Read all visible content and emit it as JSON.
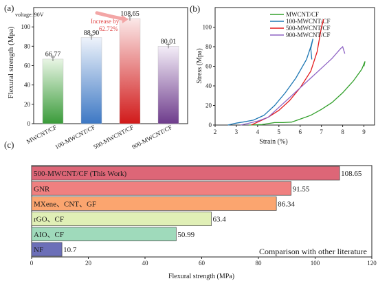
{
  "colors": {
    "axis": "#222222",
    "text": "#1a1a1a"
  },
  "chart_data": [
    {
      "panel_label": "(a)",
      "type": "bar",
      "ylabel": "Flexural strength (Mpa)",
      "ylim": [
        0,
        120
      ],
      "yticks": [
        0,
        20,
        40,
        60,
        80,
        100
      ],
      "categories": [
        "MWCNT/CF",
        "100-MWCNT/CF",
        "500-MWCNT/CF",
        "900-MWCNT/CF"
      ],
      "values": [
        66.77,
        88.9,
        108.65,
        80.01
      ],
      "value_labels": [
        "66.77",
        "88.90",
        "108.65",
        "80.01"
      ],
      "bar_colors": [
        [
          "#3a9b3a",
          "#e8f5e4"
        ],
        [
          "#3d78c4",
          "#eef3fb"
        ],
        [
          "#d11a1a",
          "#fbe8e8"
        ],
        [
          "#6e3c8c",
          "#f4eef8"
        ]
      ],
      "annotations": {
        "voltage": "voltage: 90V",
        "increase_label": "Increase by",
        "increase_value": "62.72%",
        "arrow_color": "#f3a6a6",
        "increase_text_color": "#e04848"
      }
    },
    {
      "panel_label": "(b)",
      "type": "line",
      "xlabel": "Strain (%)",
      "ylabel": "Stress (Mpa)",
      "xlim": [
        2,
        9.5
      ],
      "ylim": [
        0,
        120
      ],
      "xticks": [
        2,
        3,
        4,
        5,
        6,
        7,
        8,
        9
      ],
      "yticks": [
        0,
        20,
        40,
        60,
        80,
        100
      ],
      "legend_position": "top-right",
      "series": [
        {
          "name": "MWCNT/CF",
          "color": "#33a02c",
          "points": [
            [
              3.6,
              0
            ],
            [
              4.2,
              0.5
            ],
            [
              4.8,
              2.5
            ],
            [
              5.2,
              2.5
            ],
            [
              5.6,
              3
            ],
            [
              6.0,
              6
            ],
            [
              6.5,
              10
            ],
            [
              7.0,
              16
            ],
            [
              7.5,
              23
            ],
            [
              8.0,
              33
            ],
            [
              8.5,
              45
            ],
            [
              8.9,
              57
            ],
            [
              9.05,
              65
            ],
            [
              9.0,
              60
            ]
          ]
        },
        {
          "name": "100-MWCNT/CF",
          "color": "#1f78b4",
          "points": [
            [
              2.6,
              0
            ],
            [
              3.0,
              2
            ],
            [
              3.3,
              3
            ],
            [
              3.8,
              5
            ],
            [
              4.3,
              10
            ],
            [
              4.8,
              20
            ],
            [
              5.3,
              33
            ],
            [
              5.8,
              48
            ],
            [
              6.3,
              67
            ],
            [
              6.5,
              80
            ],
            [
              6.6,
              88
            ],
            [
              6.5,
              78
            ],
            [
              6.55,
              67
            ]
          ]
        },
        {
          "name": "500-MWCNT/CF",
          "color": "#e31a1c",
          "points": [
            [
              3.7,
              0
            ],
            [
              4.0,
              3
            ],
            [
              4.5,
              8
            ],
            [
              5.0,
              15
            ],
            [
              5.5,
              25
            ],
            [
              6.0,
              38
            ],
            [
              6.5,
              55
            ],
            [
              6.8,
              75
            ],
            [
              7.0,
              100
            ],
            [
              7.1,
              108
            ],
            [
              7.05,
              103
            ]
          ]
        },
        {
          "name": "900-MWCNT/CF",
          "color": "#8e63c4",
          "points": [
            [
              3.2,
              0
            ],
            [
              3.6,
              2
            ],
            [
              4.0,
              4
            ],
            [
              4.5,
              8
            ],
            [
              5.0,
              18
            ],
            [
              5.5,
              28
            ],
            [
              6.0,
              38
            ],
            [
              6.5,
              48
            ],
            [
              7.0,
              58
            ],
            [
              7.5,
              68
            ],
            [
              7.9,
              78
            ],
            [
              8.0,
              80
            ],
            [
              8.1,
              73
            ]
          ]
        }
      ]
    },
    {
      "panel_label": "(c)",
      "type": "bar",
      "orientation": "horizontal",
      "xlabel": "Flexural strength (MPa)",
      "xlim": [
        0,
        120
      ],
      "xticks": [
        0,
        20,
        40,
        60,
        80,
        100,
        120
      ],
      "categories": [
        "500-MWCNT/CF (This Work)",
        "GNR",
        "MXene、CNT、GF",
        "rGO、CF",
        "AIO、CF",
        "NF"
      ],
      "values": [
        108.65,
        91.55,
        86.34,
        63.4,
        50.99,
        10.7
      ],
      "value_labels": [
        "108.65",
        "91.55",
        "86.34",
        "63.4",
        "50.99",
        "10.7"
      ],
      "bar_colors": [
        "#dd6677",
        "#ef8080",
        "#fba56f",
        "#e0efb6",
        "#9fdabb",
        "#6c6fb8"
      ],
      "caption": "Comparison with other literature"
    }
  ]
}
